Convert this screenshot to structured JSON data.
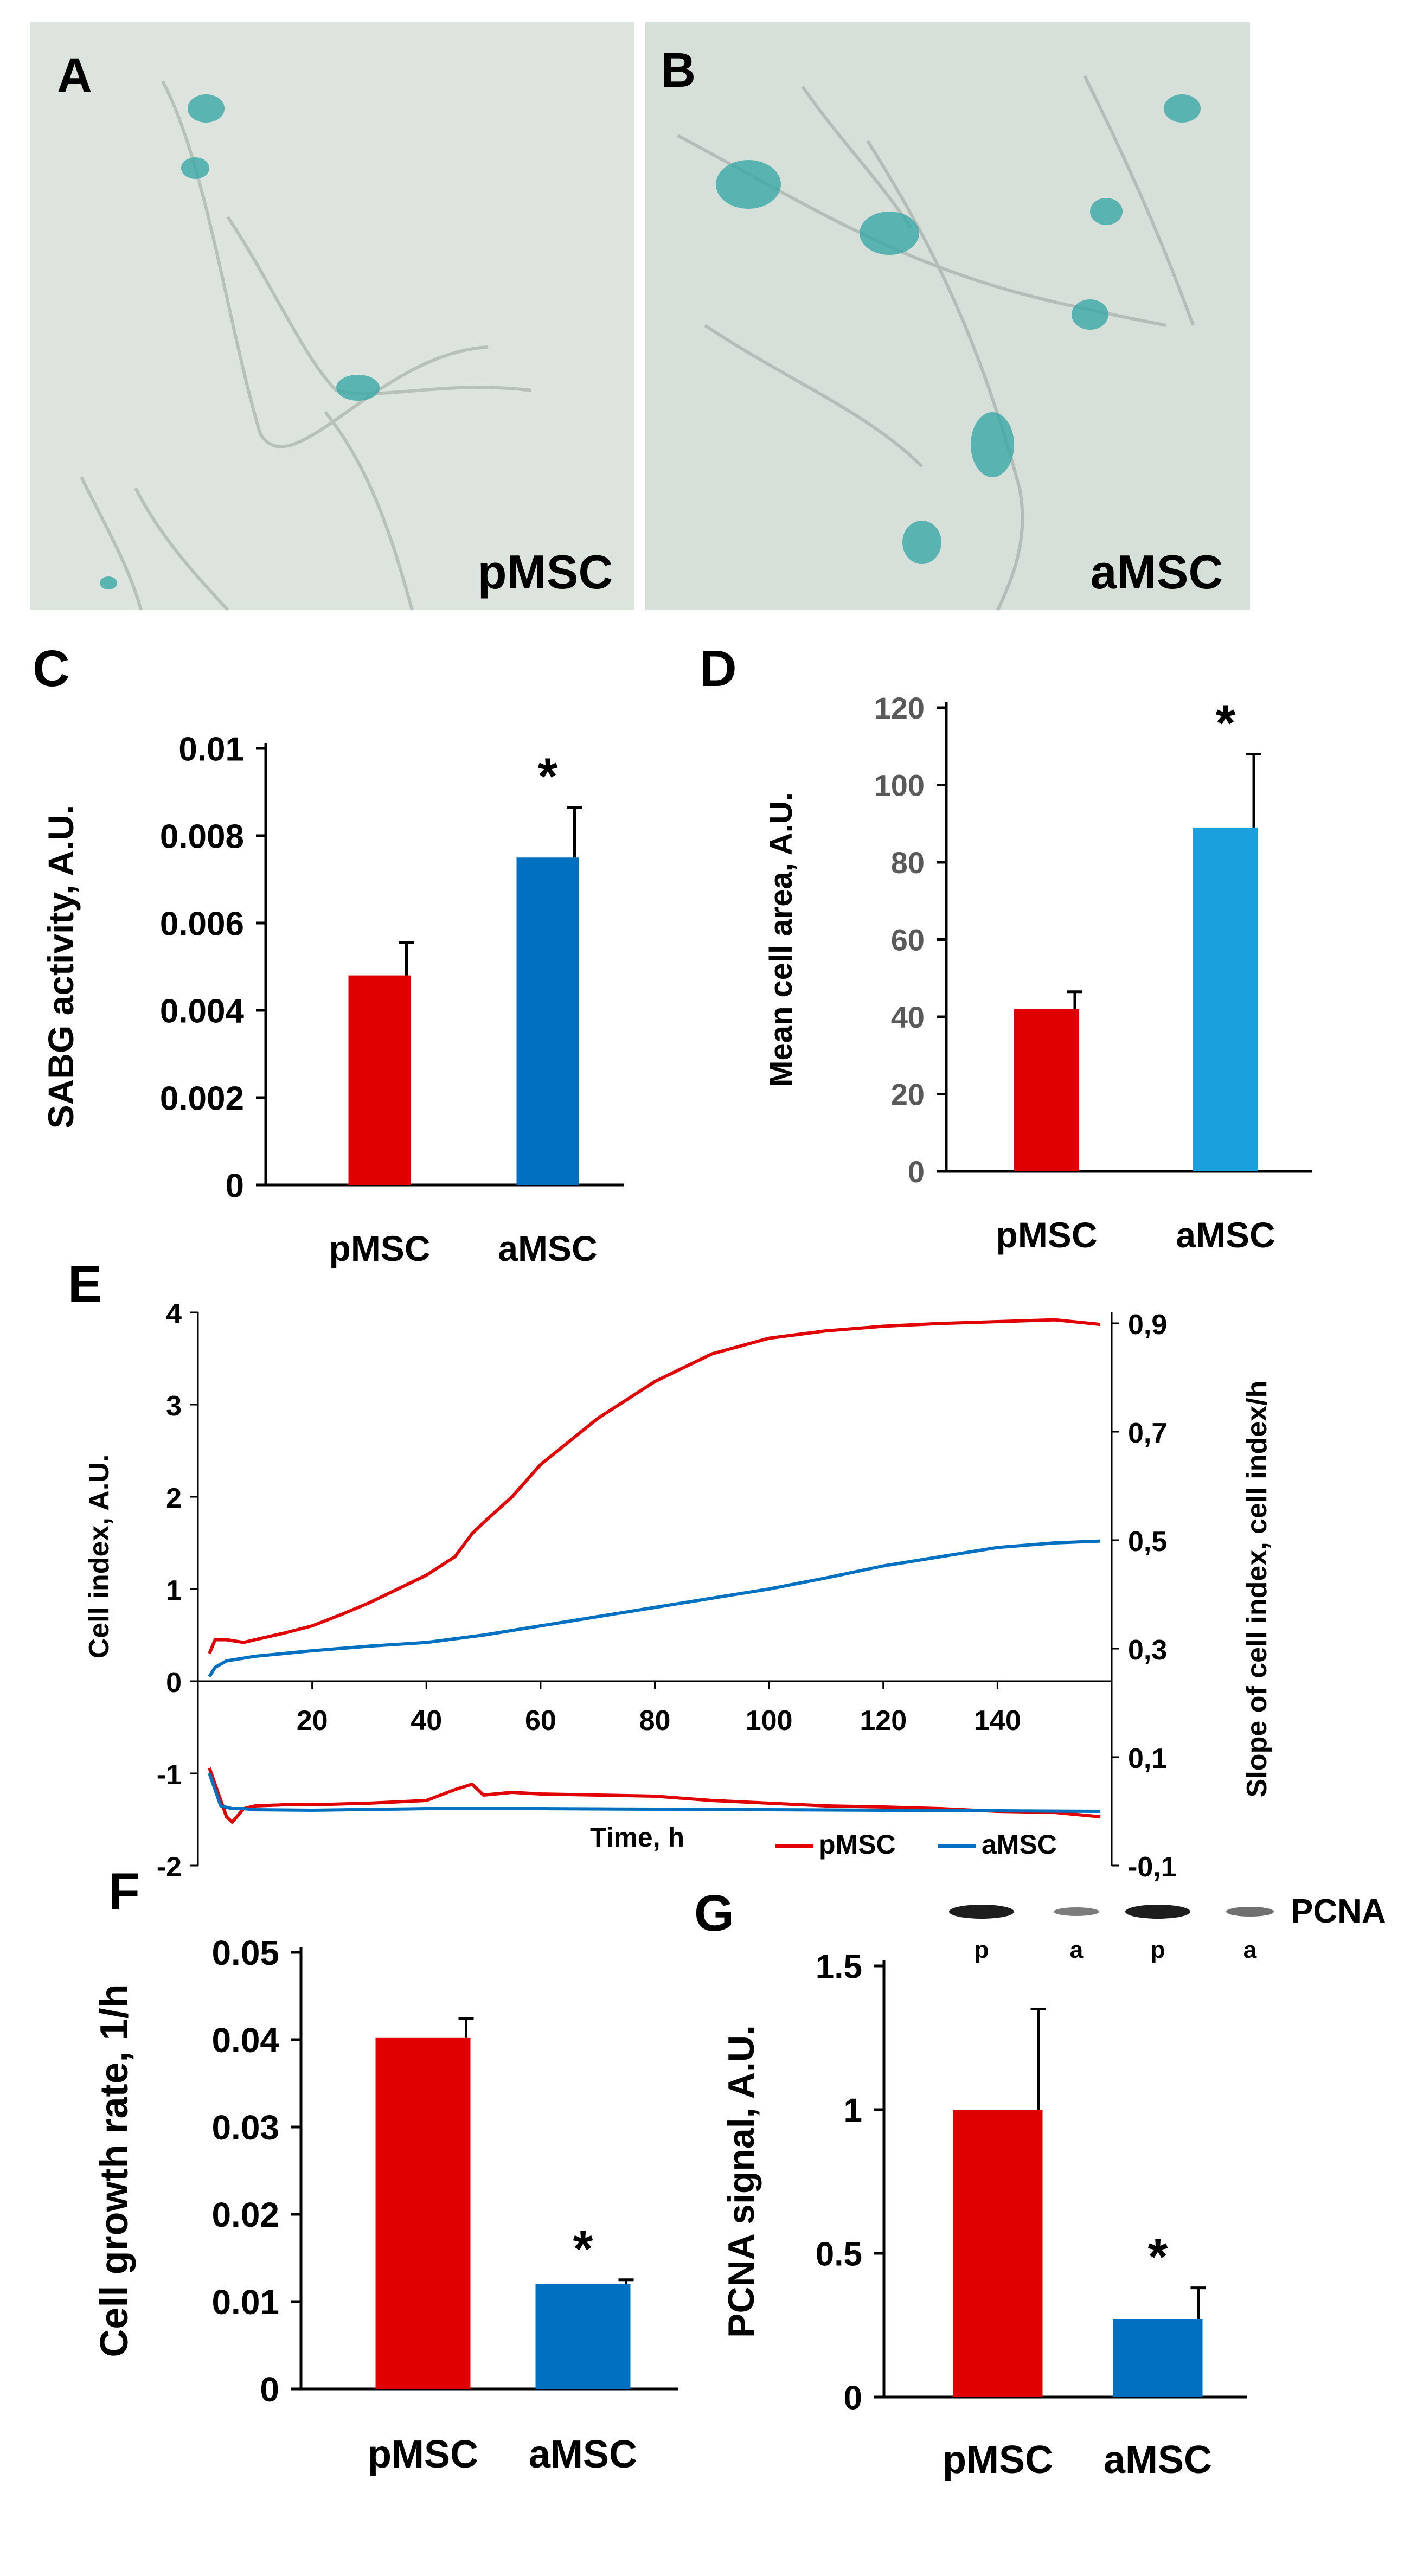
{
  "panels": {
    "A": {
      "letter": "A",
      "caption": "pMSC"
    },
    "B": {
      "letter": "B",
      "caption": "aMSC"
    }
  },
  "colors": {
    "red": "#e00000",
    "blue": "#0070c0",
    "lightblue": "#1aa0dd",
    "micro_bg": "#dbe2dc",
    "stain": "#3aa8a6"
  },
  "chart_data": [
    {
      "panel": "C",
      "type": "bar",
      "ylabel": "SABG activity, A.U.",
      "categories": [
        "pMSC",
        "aMSC"
      ],
      "values": [
        0.0048,
        0.0075
      ],
      "errors": [
        0.00075,
        0.00115
      ],
      "ylim": [
        0,
        0.01
      ],
      "yticks": [
        "0.01",
        "0.008",
        "0.006",
        "0.004",
        "0.002",
        "0"
      ],
      "significance": [
        "",
        "*"
      ],
      "colors": [
        "#e00000",
        "#0070c0"
      ]
    },
    {
      "panel": "D",
      "type": "bar",
      "ylabel": "Mean cell area, A.U.",
      "categories": [
        "pMSC",
        "aMSC"
      ],
      "values": [
        42,
        89
      ],
      "errors": [
        4.5,
        19
      ],
      "ylim": [
        0,
        120
      ],
      "yticks": [
        "120",
        "100",
        "80",
        "60",
        "40",
        "20",
        "0"
      ],
      "significance": [
        "",
        "*"
      ],
      "colors": [
        "#e00000",
        "#1aa0dd"
      ]
    },
    {
      "panel": "E",
      "type": "line",
      "ylabel_left": "Cell index, A.U.",
      "ylabel_right": "Slope of cell index, cell index/h",
      "xlabel": "Time, h",
      "xticks": [
        "20",
        "40",
        "60",
        "80",
        "100",
        "120",
        "140"
      ],
      "yticks_left": [
        "4",
        "3",
        "2",
        "1",
        "0",
        "-1",
        "-2"
      ],
      "yticks_right": [
        "0,9",
        "0,7",
        "0,5",
        "0,3",
        "0,1",
        "-0,1"
      ],
      "xlim": [
        0,
        160
      ],
      "ylim_left": [
        -2,
        4
      ],
      "ylim_right": [
        -0.1,
        1.0
      ],
      "legend": [
        "pMSC",
        "aMSC"
      ],
      "series": [
        {
          "name": "pMSC",
          "color": "#e00000",
          "x": [
            2,
            3,
            5,
            8,
            10,
            15,
            20,
            25,
            30,
            35,
            40,
            45,
            48,
            50,
            55,
            60,
            70,
            80,
            90,
            100,
            110,
            120,
            130,
            140,
            150,
            158
          ],
          "y": [
            0.3,
            0.45,
            0.45,
            0.42,
            0.45,
            0.52,
            0.6,
            0.72,
            0.85,
            1.0,
            1.15,
            1.35,
            1.6,
            1.72,
            2.0,
            2.35,
            2.85,
            3.25,
            3.55,
            3.72,
            3.8,
            3.85,
            3.88,
            3.9,
            3.92,
            3.87
          ]
        },
        {
          "name": "aMSC",
          "color": "#0070c0",
          "x": [
            2,
            3,
            5,
            8,
            10,
            20,
            30,
            40,
            50,
            60,
            70,
            80,
            90,
            100,
            110,
            120,
            130,
            140,
            150,
            158
          ],
          "y": [
            0.05,
            0.15,
            0.22,
            0.25,
            0.27,
            0.33,
            0.38,
            0.42,
            0.5,
            0.6,
            0.7,
            0.8,
            0.9,
            1.0,
            1.12,
            1.25,
            1.35,
            1.45,
            1.5,
            1.52
          ]
        },
        {
          "name": "pMSC slope",
          "color": "#e00000",
          "x": [
            2,
            3,
            4,
            5,
            6,
            8,
            10,
            15,
            20,
            30,
            40,
            45,
            48,
            50,
            55,
            60,
            70,
            80,
            90,
            100,
            110,
            120,
            130,
            140,
            150,
            158
          ],
          "y": [
            0.08,
            0.05,
            0.02,
            -0.01,
            -0.02,
            0.005,
            0.01,
            0.012,
            0.012,
            0.015,
            0.02,
            0.04,
            0.05,
            0.03,
            0.035,
            0.032,
            0.03,
            0.028,
            0.02,
            0.015,
            0.01,
            0.008,
            0.005,
            0.0,
            -0.002,
            -0.01
          ]
        },
        {
          "name": "aMSC slope",
          "color": "#0070c0",
          "x": [
            2,
            3,
            4,
            6,
            8,
            10,
            20,
            40,
            60,
            80,
            100,
            120,
            140,
            158
          ],
          "y": [
            0.07,
            0.04,
            0.01,
            0.005,
            0.005,
            0.003,
            0.002,
            0.005,
            0.005,
            0.004,
            0.003,
            0.002,
            0.001,
            0.0
          ]
        }
      ]
    },
    {
      "panel": "F",
      "type": "bar",
      "ylabel": "Cell growth rate,  1/h",
      "categories": [
        "pMSC",
        "aMSC"
      ],
      "values": [
        0.0402,
        0.012
      ],
      "errors": [
        0.0022,
        0.0005
      ],
      "ylim": [
        0,
        0.05
      ],
      "yticks": [
        "0.05",
        "0.04",
        "0.03",
        "0.02",
        "0.01",
        "0"
      ],
      "significance": [
        "",
        "*"
      ],
      "colors": [
        "#e00000",
        "#0070c0"
      ]
    },
    {
      "panel": "G",
      "type": "bar",
      "ylabel": "PCNA signal, A.U.",
      "categories": [
        "pMSC",
        "aMSC"
      ],
      "values": [
        1.0,
        0.27
      ],
      "errors": [
        0.35,
        0.11
      ],
      "ylim": [
        0,
        1.5
      ],
      "yticks": [
        "1.5",
        "1",
        "0.5",
        "0"
      ],
      "significance": [
        "",
        "*"
      ],
      "colors": [
        "#e00000",
        "#0070c0"
      ],
      "blot_label": "PCNA",
      "lane_labels": [
        "p",
        "a",
        "p",
        "a"
      ]
    }
  ]
}
